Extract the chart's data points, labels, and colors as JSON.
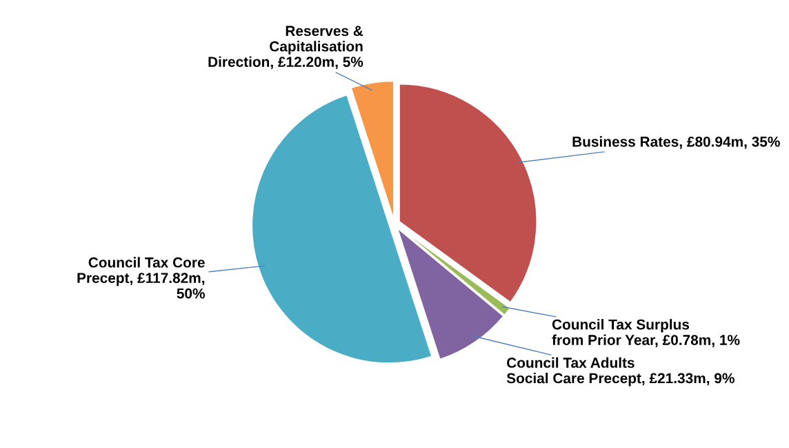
{
  "chart_data": {
    "type": "pie",
    "categories": [
      "Business Rates",
      "Council Tax Surplus\nfrom Prior Year",
      "Council Tax Adults\nSocial Care Precept",
      "Council Tax Core\nPrecept",
      "Reserves &\nCapitalisation\nDirection"
    ],
    "values": [
      35,
      1,
      9,
      50,
      5
    ],
    "value_labels": [
      "£80.94m, 35%",
      "£0.78m, 1%",
      "£21.33m, 9%",
      "£117.82m,\n50%",
      "£12.20m, 5%"
    ],
    "colors": [
      "#c0504d",
      "#9bbb59",
      "#8064a2",
      "#4bacc6",
      "#f79646"
    ]
  }
}
